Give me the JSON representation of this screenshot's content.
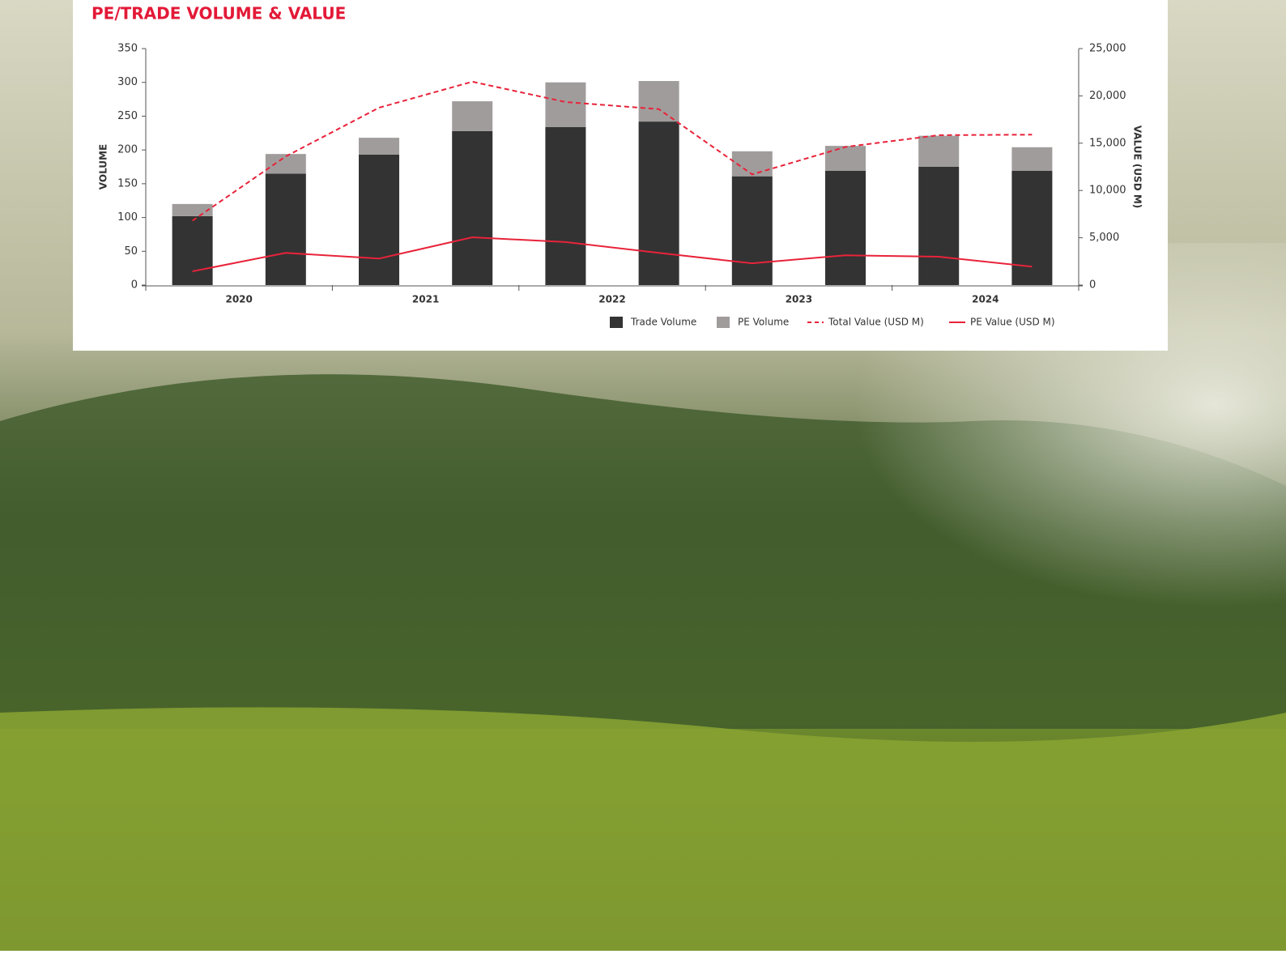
{
  "chart_data": {
    "type": "bar",
    "title": "PE/TRADE VOLUME & VALUE",
    "y_label": "VOLUME",
    "y2_label": "VALUE (USD M)",
    "categories": [
      "2020",
      null,
      "2021",
      null,
      "2022",
      null,
      "2023",
      null,
      "2024",
      null
    ],
    "series": [
      {
        "name": "Trade Volume",
        "kind": "bar",
        "color": "#333333",
        "values": [
          102,
          165,
          193,
          228,
          234,
          242,
          161,
          169,
          175,
          169
        ]
      },
      {
        "name": "PE Volume",
        "kind": "bar",
        "color": "#a19c9c",
        "values": [
          18,
          29,
          25,
          44,
          66,
          60,
          37,
          37,
          46,
          35
        ]
      },
      {
        "name": "Total Value (USD M)",
        "kind": "line",
        "dashed": true,
        "axis": "y2",
        "color": "#e8233a",
        "values": [
          6800,
          13600,
          18750,
          21500,
          19350,
          18600,
          11700,
          14600,
          15850,
          15900
        ]
      },
      {
        "name": "PE Value (USD M)",
        "kind": "line",
        "dashed": false,
        "axis": "y2",
        "color": "#e8233a",
        "values": [
          1450,
          3400,
          2800,
          5050,
          4550,
          3400,
          2300,
          3150,
          3000,
          1950
        ]
      }
    ],
    "ylim": [
      0,
      350
    ],
    "yticks": [
      0,
      50,
      100,
      150,
      200,
      250,
      300,
      350
    ],
    "y2lim": [
      0,
      25000
    ],
    "y2ticks": [
      0,
      {
        "value": 5000,
        "label": "5,000"
      },
      {
        "value": 10000,
        "label": "10,000"
      },
      {
        "value": 15000,
        "label": "15,000"
      },
      {
        "value": 20000,
        "label": "20,000"
      },
      {
        "value": 25000,
        "label": "25,000"
      }
    ],
    "grid": false,
    "legend": "bottom-right"
  }
}
